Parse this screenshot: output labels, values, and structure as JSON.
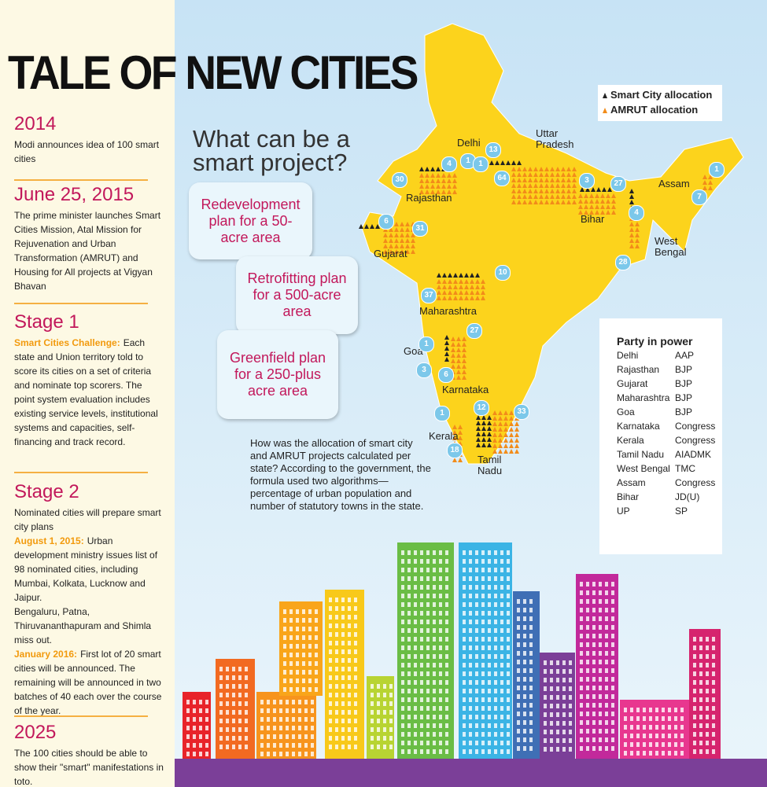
{
  "header": {
    "title": "TALE OF NEW CITIES"
  },
  "timeline": [
    {
      "heading": "2014",
      "paragraphs": [
        {
          "text": "Modi announces idea of 100 smart cities"
        }
      ]
    },
    {
      "heading": "June 25, 2015",
      "paragraphs": [
        {
          "text": "The prime minister launches Smart Cities Mission, Atal Mission for Rejuvenation and Urban Transformation (AMRUT) and Housing for All projects at Vigyan Bhavan"
        }
      ]
    },
    {
      "heading": "Stage 1",
      "paragraphs": [
        {
          "lead": "Smart Cities Challenge:",
          "text": "Each state and Union territory told to score its cities on a set of criteria and nominate top scorers. The point system evaluation includes existing service levels, institutional systems and capacities, self-financing and track record."
        }
      ]
    },
    {
      "heading": "Stage 2",
      "paragraphs": [
        {
          "text": "Nominated cities will prepare smart city plans"
        },
        {
          "lead": "August 1, 2015:",
          "text": "Urban development ministry issues list of 98 nominated cities, including Mumbai, Kolkata, Lucknow and Jaipur."
        },
        {
          "text": "Bengaluru, Patna, Thiruvananthapuram and Shimla miss out."
        },
        {
          "lead": "January 2016:",
          "text": "First lot of 20 smart cities will be announced. The remaining will be announced in two batches of 40 each over the course of the year."
        }
      ]
    },
    {
      "heading": "2025",
      "paragraphs": [
        {
          "text": "The 100 cities should be able to show their \"smart\" manifestations in toto."
        }
      ]
    }
  ],
  "question": {
    "title": "What can be a smart project?",
    "options": [
      "Redevelopment plan for a 50-acre area",
      "Retrofitting plan for a 500-acre area",
      "Greenfield plan for a 250-plus acre area"
    ]
  },
  "legend": [
    "Smart City allocation",
    "AMRUT allocation"
  ],
  "map": {
    "labels": [
      "Delhi",
      "Uttar Pradesh",
      "Rajasthan",
      "Assam",
      "Bihar",
      "West Bengal",
      "Gujarat",
      "Maharashtra",
      "Goa",
      "Karnataka",
      "Kerala",
      "Tamil Nadu"
    ],
    "allocations": [
      30,
      4,
      1,
      1,
      13,
      64,
      3,
      27,
      1,
      7,
      4,
      28,
      6,
      31,
      10,
      37,
      27,
      1,
      3,
      6,
      1,
      12,
      33,
      18
    ]
  },
  "explanation": "How was the allocation of smart city and AMRUT projects calculated per state? According to the government, the formula used two algorithms—percentage of urban population and number of statutory towns in the state.",
  "party_table": {
    "title": "Party in power",
    "rows": [
      [
        "Delhi",
        "AAP"
      ],
      [
        "Rajasthan",
        "BJP"
      ],
      [
        "Gujarat",
        "BJP"
      ],
      [
        "Maharashtra",
        "BJP"
      ],
      [
        "Goa",
        "BJP"
      ],
      [
        "Karnataka",
        "Congress"
      ],
      [
        "Kerala",
        "Congress"
      ],
      [
        "Tamil Nadu",
        "AIADMK"
      ],
      [
        "West Bengal",
        "TMC"
      ],
      [
        "Assam",
        "Congress"
      ],
      [
        "Bihar",
        "JD(U)"
      ],
      [
        "UP",
        "SP"
      ]
    ]
  }
}
